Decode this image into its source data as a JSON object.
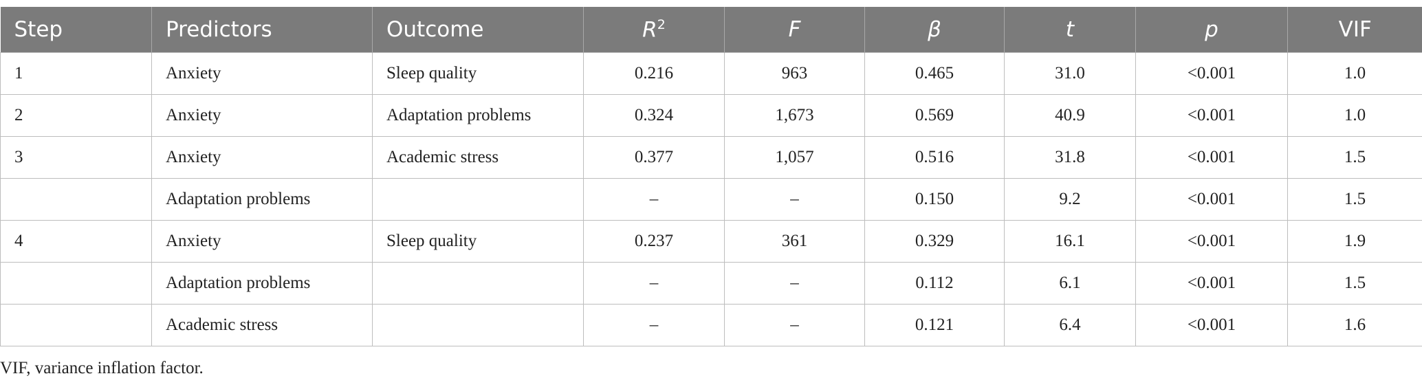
{
  "table": {
    "header": [
      "Step",
      "Predictors",
      "Outcome",
      {
        "base": "R",
        "sup": "2"
      },
      "F",
      "β",
      "t",
      "p",
      "VIF"
    ],
    "rows": [
      [
        "1",
        "Anxiety",
        "Sleep quality",
        "0.216",
        "963",
        "0.465",
        "31.0",
        "<0.001",
        "1.0"
      ],
      [
        "2",
        "Anxiety",
        "Adaptation problems",
        "0.324",
        "1,673",
        "0.569",
        "40.9",
        "<0.001",
        "1.0"
      ],
      [
        "3",
        "Anxiety",
        "Academic stress",
        "0.377",
        "1,057",
        "0.516",
        "31.8",
        "<0.001",
        "1.5"
      ],
      [
        null,
        "Adaptation problems",
        null,
        "–",
        "–",
        "0.150",
        "9.2",
        "<0.001",
        "1.5"
      ],
      [
        "4",
        "Anxiety",
        "Sleep quality",
        "0.237",
        "361",
        "0.329",
        "16.1",
        "<0.001",
        "1.9"
      ],
      [
        null,
        "Adaptation problems",
        null,
        "–",
        "–",
        "0.112",
        "6.1",
        "<0.001",
        "1.5"
      ],
      [
        null,
        "Academic stress",
        null,
        "–",
        "–",
        "0.121",
        "6.4",
        "<0.001",
        "1.6"
      ]
    ],
    "footnote": "VIF, variance inflation factor."
  }
}
